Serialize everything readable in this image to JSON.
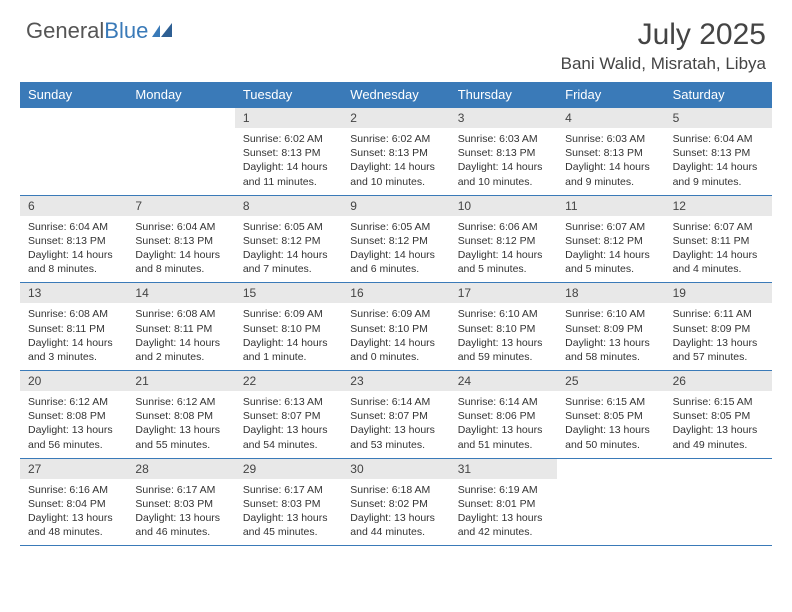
{
  "brand": {
    "part1": "General",
    "part2": "Blue"
  },
  "title": "July 2025",
  "location": "Bani Walid, Misratah, Libya",
  "colors": {
    "accent": "#3a7ab8",
    "header_text": "#ffffff",
    "daynum_bg": "#e8e8e8",
    "body_text": "#333333",
    "title_text": "#444444",
    "logo_gray": "#555555"
  },
  "dayNames": [
    "Sunday",
    "Monday",
    "Tuesday",
    "Wednesday",
    "Thursday",
    "Friday",
    "Saturday"
  ],
  "firstWeekday": 2,
  "daysInMonth": 31,
  "days": {
    "1": {
      "sunrise": "6:02 AM",
      "sunset": "8:13 PM",
      "daylight": "14 hours and 11 minutes."
    },
    "2": {
      "sunrise": "6:02 AM",
      "sunset": "8:13 PM",
      "daylight": "14 hours and 10 minutes."
    },
    "3": {
      "sunrise": "6:03 AM",
      "sunset": "8:13 PM",
      "daylight": "14 hours and 10 minutes."
    },
    "4": {
      "sunrise": "6:03 AM",
      "sunset": "8:13 PM",
      "daylight": "14 hours and 9 minutes."
    },
    "5": {
      "sunrise": "6:04 AM",
      "sunset": "8:13 PM",
      "daylight": "14 hours and 9 minutes."
    },
    "6": {
      "sunrise": "6:04 AM",
      "sunset": "8:13 PM",
      "daylight": "14 hours and 8 minutes."
    },
    "7": {
      "sunrise": "6:04 AM",
      "sunset": "8:13 PM",
      "daylight": "14 hours and 8 minutes."
    },
    "8": {
      "sunrise": "6:05 AM",
      "sunset": "8:12 PM",
      "daylight": "14 hours and 7 minutes."
    },
    "9": {
      "sunrise": "6:05 AM",
      "sunset": "8:12 PM",
      "daylight": "14 hours and 6 minutes."
    },
    "10": {
      "sunrise": "6:06 AM",
      "sunset": "8:12 PM",
      "daylight": "14 hours and 5 minutes."
    },
    "11": {
      "sunrise": "6:07 AM",
      "sunset": "8:12 PM",
      "daylight": "14 hours and 5 minutes."
    },
    "12": {
      "sunrise": "6:07 AM",
      "sunset": "8:11 PM",
      "daylight": "14 hours and 4 minutes."
    },
    "13": {
      "sunrise": "6:08 AM",
      "sunset": "8:11 PM",
      "daylight": "14 hours and 3 minutes."
    },
    "14": {
      "sunrise": "6:08 AM",
      "sunset": "8:11 PM",
      "daylight": "14 hours and 2 minutes."
    },
    "15": {
      "sunrise": "6:09 AM",
      "sunset": "8:10 PM",
      "daylight": "14 hours and 1 minute."
    },
    "16": {
      "sunrise": "6:09 AM",
      "sunset": "8:10 PM",
      "daylight": "14 hours and 0 minutes."
    },
    "17": {
      "sunrise": "6:10 AM",
      "sunset": "8:10 PM",
      "daylight": "13 hours and 59 minutes."
    },
    "18": {
      "sunrise": "6:10 AM",
      "sunset": "8:09 PM",
      "daylight": "13 hours and 58 minutes."
    },
    "19": {
      "sunrise": "6:11 AM",
      "sunset": "8:09 PM",
      "daylight": "13 hours and 57 minutes."
    },
    "20": {
      "sunrise": "6:12 AM",
      "sunset": "8:08 PM",
      "daylight": "13 hours and 56 minutes."
    },
    "21": {
      "sunrise": "6:12 AM",
      "sunset": "8:08 PM",
      "daylight": "13 hours and 55 minutes."
    },
    "22": {
      "sunrise": "6:13 AM",
      "sunset": "8:07 PM",
      "daylight": "13 hours and 54 minutes."
    },
    "23": {
      "sunrise": "6:14 AM",
      "sunset": "8:07 PM",
      "daylight": "13 hours and 53 minutes."
    },
    "24": {
      "sunrise": "6:14 AM",
      "sunset": "8:06 PM",
      "daylight": "13 hours and 51 minutes."
    },
    "25": {
      "sunrise": "6:15 AM",
      "sunset": "8:05 PM",
      "daylight": "13 hours and 50 minutes."
    },
    "26": {
      "sunrise": "6:15 AM",
      "sunset": "8:05 PM",
      "daylight": "13 hours and 49 minutes."
    },
    "27": {
      "sunrise": "6:16 AM",
      "sunset": "8:04 PM",
      "daylight": "13 hours and 48 minutes."
    },
    "28": {
      "sunrise": "6:17 AM",
      "sunset": "8:03 PM",
      "daylight": "13 hours and 46 minutes."
    },
    "29": {
      "sunrise": "6:17 AM",
      "sunset": "8:03 PM",
      "daylight": "13 hours and 45 minutes."
    },
    "30": {
      "sunrise": "6:18 AM",
      "sunset": "8:02 PM",
      "daylight": "13 hours and 44 minutes."
    },
    "31": {
      "sunrise": "6:19 AM",
      "sunset": "8:01 PM",
      "daylight": "13 hours and 42 minutes."
    }
  },
  "labels": {
    "sunrise": "Sunrise:",
    "sunset": "Sunset:",
    "daylight": "Daylight:"
  }
}
